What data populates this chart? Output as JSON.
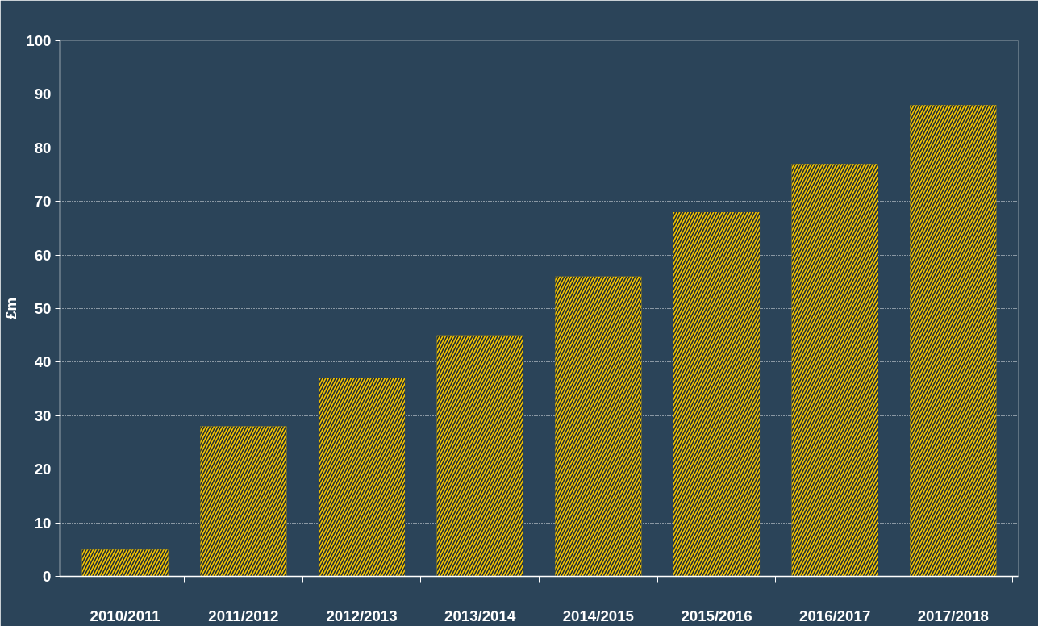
{
  "chart_data": {
    "type": "bar",
    "ylabel": "£m",
    "categories": [
      "2010/2011",
      "2011/2012",
      "2012/2013",
      "2013/2014",
      "2014/2015",
      "2015/2016",
      "2016/2017",
      "2017/2018"
    ],
    "values": [
      5,
      28,
      37,
      45,
      56,
      68,
      77,
      88
    ],
    "color": "#f5c400",
    "ylim": [
      0,
      100
    ],
    "yticks": [
      0,
      10,
      20,
      30,
      40,
      50,
      60,
      70,
      80,
      90,
      100
    ],
    "grid": "y"
  }
}
